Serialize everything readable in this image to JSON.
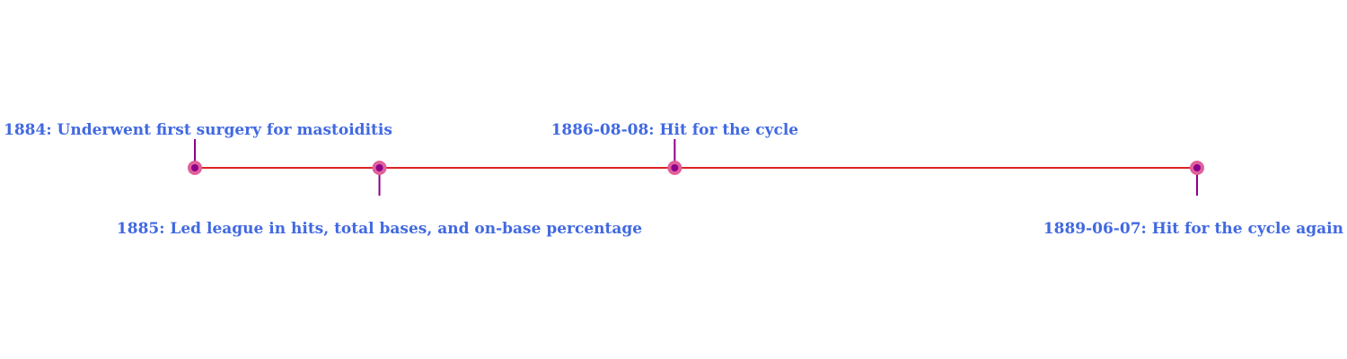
{
  "chart_data": {
    "type": "timeline",
    "events": [
      {
        "date": "1884",
        "label": "1884: Underwent first surgery for mastoiditis",
        "side": "above"
      },
      {
        "date": "1885",
        "label": "1885: Led league in hits, total bases, and on-base percentage",
        "side": "below"
      },
      {
        "date": "1886-08-08",
        "label": "1886-08-08: Hit for the cycle",
        "side": "above"
      },
      {
        "date": "1889-06-07",
        "label": "1889-06-07: Hit for the cycle again",
        "side": "below"
      }
    ],
    "colors": {
      "axis_line": "#dd2222",
      "marker_outer": "#e0609a",
      "marker_inner": "#8b008b",
      "stem": "#8b008b",
      "label": "#4169e1"
    }
  }
}
